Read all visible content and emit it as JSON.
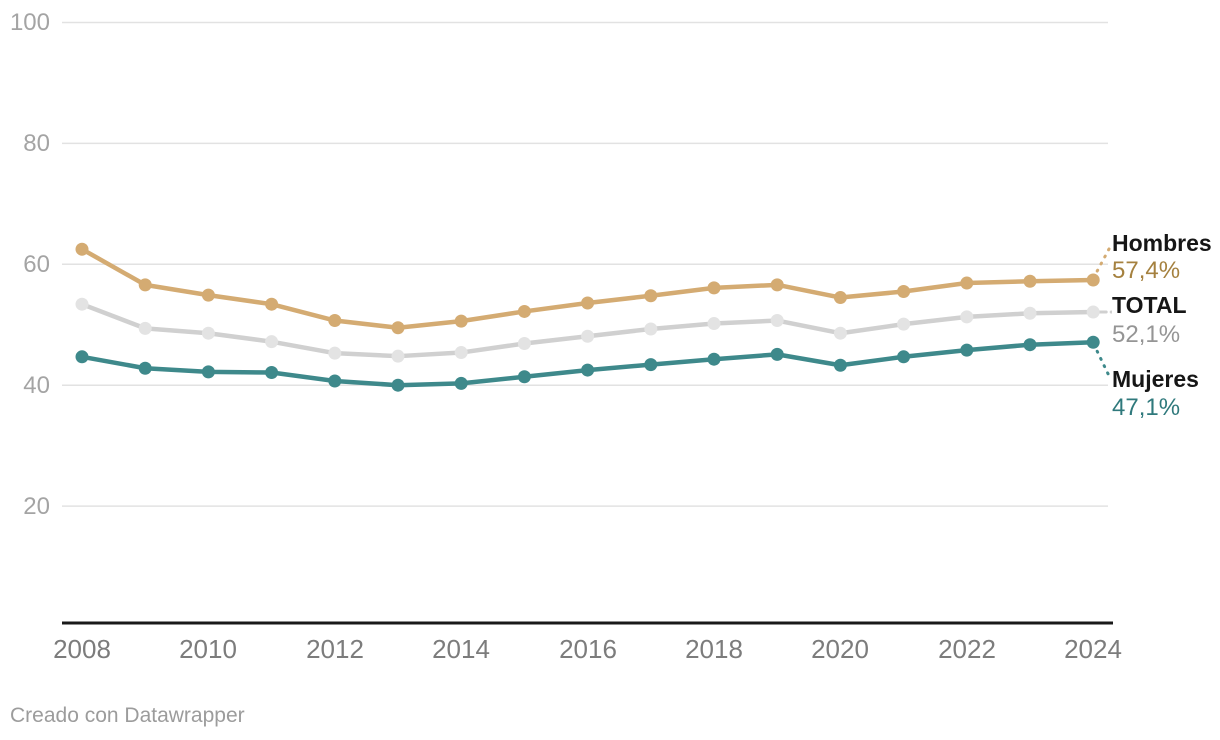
{
  "chart_data": {
    "type": "line",
    "x": [
      2008,
      2009,
      2010,
      2011,
      2012,
      2013,
      2014,
      2015,
      2016,
      2017,
      2018,
      2019,
      2020,
      2021,
      2022,
      2023,
      2024
    ],
    "series": [
      {
        "name": "Hombres",
        "value_label": "57,4%",
        "color": "#d4ab72",
        "point_color": "#d4ab72",
        "label_color": "#a5813f",
        "values": [
          62.5,
          56.6,
          54.9,
          53.4,
          50.7,
          49.5,
          50.6,
          52.2,
          53.6,
          54.8,
          56.1,
          56.6,
          54.5,
          55.5,
          56.9,
          57.2,
          57.4
        ]
      },
      {
        "name": "TOTAL",
        "value_label": "52,1%",
        "color": "#d0d0d0",
        "point_color": "#e3e3e3",
        "label_color": "#959595",
        "values": [
          53.4,
          49.4,
          48.6,
          47.2,
          45.3,
          44.8,
          45.4,
          46.9,
          48.1,
          49.3,
          50.2,
          50.7,
          48.6,
          50.1,
          51.3,
          51.9,
          52.1
        ]
      },
      {
        "name": "Mujeres",
        "value_label": "47,1%",
        "color": "#3e898b",
        "point_color": "#3e898b",
        "label_color": "#2f797c",
        "values": [
          44.7,
          42.8,
          42.2,
          42.1,
          40.7,
          40.0,
          40.3,
          41.4,
          42.5,
          43.4,
          44.3,
          45.1,
          43.3,
          44.7,
          45.8,
          46.7,
          47.1
        ]
      }
    ],
    "title": "",
    "xlabel": "",
    "ylabel": "",
    "ylim": [
      0,
      100
    ],
    "yticks": [
      100,
      80,
      60,
      40,
      20
    ],
    "xticks": [
      2008,
      2010,
      2012,
      2014,
      2016,
      2018,
      2020,
      2022,
      2024
    ],
    "grid": "horizontal-only",
    "legend_position": "right-of-last-points"
  },
  "colors": {
    "grid": "#e2e2e2",
    "axis": "#191919",
    "background": "#ffffff"
  },
  "footer": {
    "credit": "Creado con Datawrapper"
  }
}
